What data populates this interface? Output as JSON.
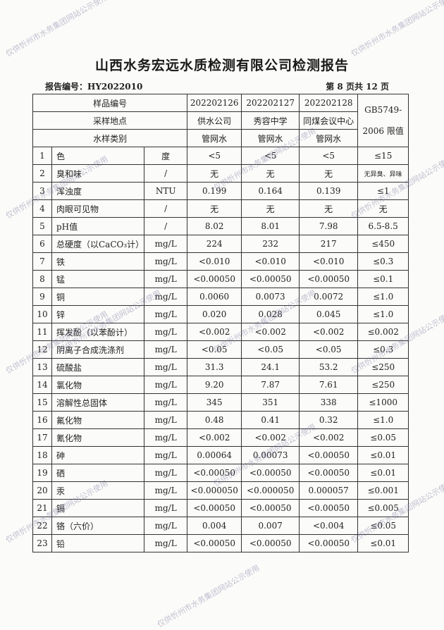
{
  "title": "山西水务宏远水质检测有限公司检测报告",
  "report_no": "报告编号：HY2022010",
  "page_info": "第 8 页共 12 页",
  "header": {
    "sample_no_label": "样品编号",
    "location_label": "采样地点",
    "type_label": "水样类别",
    "standard_label_1": "GB5749-",
    "standard_label_2": "2006 限值",
    "samples": [
      {
        "no": "202202126",
        "location": "供水公司",
        "type": "管网水"
      },
      {
        "no": "202202127",
        "location": "秀容中学",
        "type": "管网水"
      },
      {
        "no": "202202128",
        "location": "同煤会议中心",
        "type": "管网水"
      }
    ]
  },
  "rows": [
    {
      "idx": "1",
      "name": "色",
      "unit": "度",
      "v": [
        "<5",
        "<5",
        "<5"
      ],
      "limit": "≤15"
    },
    {
      "idx": "2",
      "name": "臭和味",
      "unit": "/",
      "v": [
        "无",
        "无",
        "无"
      ],
      "limit": "无异臭、异味"
    },
    {
      "idx": "3",
      "name": "浑浊度",
      "unit": "NTU",
      "v": [
        "0.199",
        "0.164",
        "0.139"
      ],
      "limit": "≤1"
    },
    {
      "idx": "4",
      "name": "肉眼可见物",
      "unit": "/",
      "v": [
        "无",
        "无",
        "无"
      ],
      "limit": "无"
    },
    {
      "idx": "5",
      "name": "pH值",
      "unit": "/",
      "v": [
        "8.02",
        "8.01",
        "7.98"
      ],
      "limit": "6.5-8.5"
    },
    {
      "idx": "6",
      "name": "总硬度（以CaCO₃计）",
      "unit": "mg/L",
      "v": [
        "224",
        "232",
        "217"
      ],
      "limit": "≤450"
    },
    {
      "idx": "7",
      "name": "铁",
      "unit": "mg/L",
      "v": [
        "<0.010",
        "<0.010",
        "<0.010"
      ],
      "limit": "≤0.3"
    },
    {
      "idx": "8",
      "name": "锰",
      "unit": "mg/L",
      "v": [
        "<0.00050",
        "<0.00050",
        "<0.00050"
      ],
      "limit": "≤0.1"
    },
    {
      "idx": "9",
      "name": "铜",
      "unit": "mg/L",
      "v": [
        "0.0060",
        "0.0073",
        "0.0072"
      ],
      "limit": "≤1.0"
    },
    {
      "idx": "10",
      "name": "锌",
      "unit": "mg/L",
      "v": [
        "0.020",
        "0.028",
        "0.045"
      ],
      "limit": "≤1.0"
    },
    {
      "idx": "11",
      "name": "挥发酚（以苯酚计）",
      "unit": "mg/L",
      "v": [
        "<0.002",
        "<0.002",
        "<0.002"
      ],
      "limit": "≤0.002"
    },
    {
      "idx": "12",
      "name": "阴离子合成洗涤剂",
      "unit": "mg/L",
      "v": [
        "<0.05",
        "<0.05",
        "<0.05"
      ],
      "limit": "≤0.3"
    },
    {
      "idx": "13",
      "name": "硫酸盐",
      "unit": "mg/L",
      "v": [
        "31.3",
        "24.1",
        "53.2"
      ],
      "limit": "≤250"
    },
    {
      "idx": "14",
      "name": "氯化物",
      "unit": "mg/L",
      "v": [
        "9.20",
        "7.87",
        "7.61"
      ],
      "limit": "≤250"
    },
    {
      "idx": "15",
      "name": "溶解性总固体",
      "unit": "mg/L",
      "v": [
        "345",
        "351",
        "338"
      ],
      "limit": "≤1000"
    },
    {
      "idx": "16",
      "name": "氟化物",
      "unit": "mg/L",
      "v": [
        "0.48",
        "0.41",
        "0.32"
      ],
      "limit": "≤1.0"
    },
    {
      "idx": "17",
      "name": "氰化物",
      "unit": "mg/L",
      "v": [
        "<0.002",
        "<0.002",
        "<0.002"
      ],
      "limit": "≤0.05"
    },
    {
      "idx": "18",
      "name": "砷",
      "unit": "mg/L",
      "v": [
        "0.00064",
        "0.00073",
        "<0.00050"
      ],
      "limit": "≤0.01"
    },
    {
      "idx": "19",
      "name": "硒",
      "unit": "mg/L",
      "v": [
        "<0.00050",
        "<0.00050",
        "<0.00050"
      ],
      "limit": "≤0.01"
    },
    {
      "idx": "20",
      "name": "汞",
      "unit": "mg/L",
      "v": [
        "<0.000050",
        "<0.000050",
        "0.000057"
      ],
      "limit": "≤0.001"
    },
    {
      "idx": "21",
      "name": "镉",
      "unit": "mg/L",
      "v": [
        "<0.00050",
        "<0.00050",
        "<0.00050"
      ],
      "limit": "≤0.005"
    },
    {
      "idx": "22",
      "name": "铬（六价）",
      "unit": "mg/L",
      "v": [
        "0.004",
        "0.007",
        "<0.004"
      ],
      "limit": "≤0.05"
    },
    {
      "idx": "23",
      "name": "铅",
      "unit": "mg/L",
      "v": [
        "<0.00050",
        "<0.00050",
        "<0.00050"
      ],
      "limit": "≤0.01"
    }
  ],
  "watermark": "仅供忻州市水务集团网站公示使用"
}
